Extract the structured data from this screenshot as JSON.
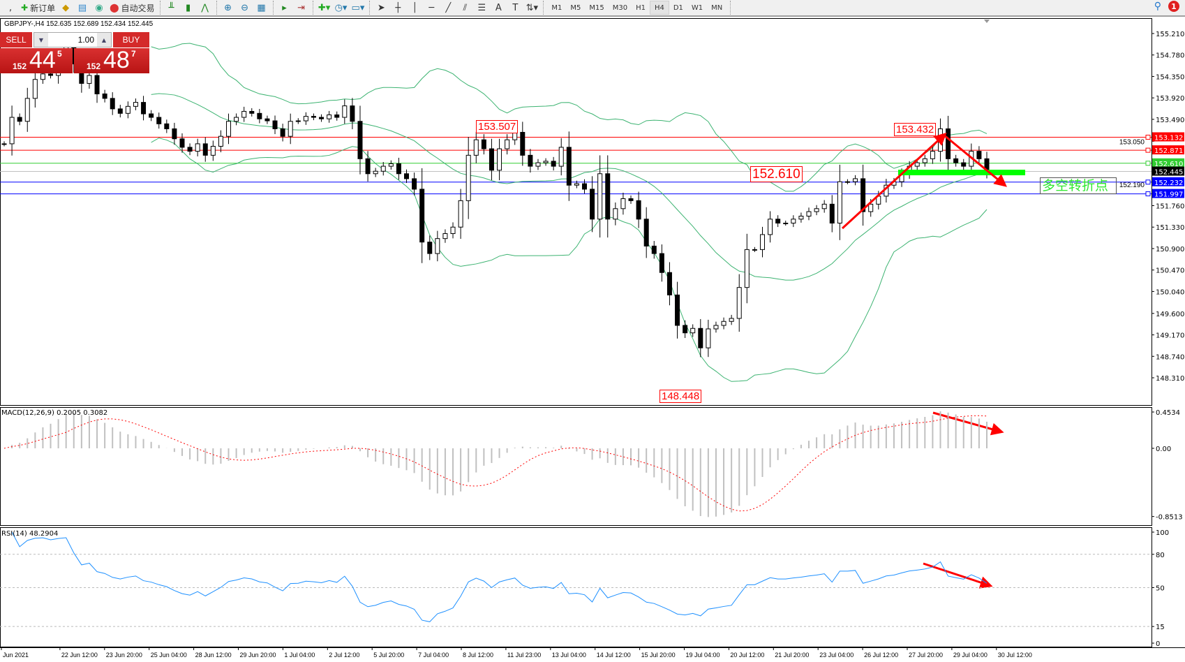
{
  "toolbar": {
    "new_order": "新订单",
    "auto_trading": "自动交易",
    "timeframes": [
      "M1",
      "M5",
      "M15",
      "M30",
      "H1",
      "H4",
      "D1",
      "W1",
      "MN"
    ],
    "active_timeframe": "H4",
    "notification_count": "1",
    "icons": [
      "new-order-icon",
      "market-watch-icon",
      "navigator-icon",
      "signals-icon",
      "auto-trading-icon",
      "bar-chart-icon",
      "candlestick-icon",
      "line-chart-icon",
      "zoom-in-icon",
      "zoom-out-icon",
      "tile-windows-icon",
      "autoscroll-icon",
      "chart-shift-icon",
      "indicators-icon",
      "periods-icon",
      "templates-icon",
      "cursor-icon",
      "crosshair-icon",
      "vertical-line-icon",
      "horizontal-line-icon",
      "trendline-icon",
      "fibonacci-icon",
      "fibo-fan-icon",
      "text-icon",
      "text-label-icon",
      "arrows-icon",
      "search-icon",
      "notification-icon"
    ]
  },
  "chart_info": "GBPJPY-,H4  152.635 152.689 152.434 152.445",
  "one_click": {
    "sell": "SELL",
    "buy": "BUY",
    "lot": "1.00",
    "bid": {
      "big": "152",
      "mid": "44",
      "sup": "5"
    },
    "ask": {
      "big": "152",
      "mid": "48",
      "sup": "7"
    }
  },
  "annotations": {
    "high1": "153.507",
    "level": "152.610",
    "high2": "153.432",
    "low": "148.448",
    "pivot_text": "多空转折点"
  },
  "colors": {
    "bull": "#ffffff",
    "bear": "#000000",
    "bands": "#3cb371",
    "macd_hist": "#c0c0c0",
    "macd_signal": "#ff0000",
    "rsi": "#1e90ff",
    "arrow": "#ff0000",
    "pivot_bar": "#00ff00"
  },
  "chart_data": [
    {
      "type": "candlestick",
      "symbol": "GBPJPY-",
      "timeframe": "H4",
      "ylim": [
        147.79,
        155.46
      ],
      "y_ticks": [
        "155.210",
        "154.780",
        "154.350",
        "153.920",
        "153.490",
        "153.050",
        "152.190",
        "151.760",
        "151.330",
        "150.900",
        "150.470",
        "150.040",
        "149.600",
        "149.170",
        "148.740",
        "148.310"
      ],
      "x_ticks": [
        "Jun 2021",
        "22 Jun 12:00",
        "23 Jun 20:00",
        "25 Jun 04:00",
        "28 Jun 12:00",
        "29 Jun 20:00",
        "1 Jul 04:00",
        "2 Jul 12:00",
        "5 Jul 20:00",
        "7 Jul 04:00",
        "8 Jul 12:00",
        "11 Jul 23:00",
        "13 Jul 04:00",
        "14 Jul 12:00",
        "15 Jul 20:00",
        "19 Jul 04:00",
        "20 Jul 12:00",
        "21 Jul 20:00",
        "23 Jul 04:00",
        "26 Jul 12:00",
        "27 Jul 20:00",
        "29 Jul 04:00",
        "30 Jul 12:00"
      ],
      "close": [
        153.0,
        153.53,
        153.45,
        153.91,
        154.29,
        154.4,
        154.37,
        154.7,
        154.97,
        154.6,
        154.21,
        154.37,
        154.0,
        153.91,
        153.7,
        153.61,
        153.75,
        153.83,
        153.6,
        153.53,
        153.4,
        153.3,
        153.1,
        152.93,
        152.85,
        153.0,
        152.77,
        152.95,
        153.15,
        153.45,
        153.53,
        153.65,
        153.61,
        153.5,
        153.46,
        153.3,
        153.15,
        153.45,
        153.46,
        153.55,
        153.53,
        153.5,
        153.58,
        153.53,
        153.76,
        153.45,
        152.7,
        152.4,
        152.45,
        152.55,
        152.6,
        152.4,
        152.3,
        152.09,
        151.03,
        150.8,
        151.1,
        151.2,
        151.33,
        151.86,
        152.77,
        153.08,
        152.9,
        152.47,
        152.9,
        153.08,
        153.23,
        152.77,
        152.55,
        152.62,
        152.65,
        152.55,
        152.93,
        152.17,
        152.2,
        152.09,
        151.49,
        152.4,
        151.49,
        151.7,
        151.9,
        151.86,
        151.49,
        150.95,
        150.8,
        150.42,
        149.97,
        149.36,
        149.21,
        149.3,
        148.91,
        149.29,
        149.36,
        149.44,
        149.5,
        150.12,
        150.88,
        150.88,
        151.18,
        151.49,
        151.41,
        151.41,
        151.49,
        151.55,
        151.64,
        151.7,
        151.79,
        151.41,
        152.24,
        152.24,
        152.3,
        151.64,
        151.79,
        151.95,
        152.17,
        152.24,
        152.4,
        152.55,
        152.62,
        152.7,
        152.85,
        153.3,
        152.7,
        152.62,
        152.55,
        152.85,
        152.7,
        152.445
      ],
      "indicators": [
        "Bollinger Bands"
      ],
      "hlines": [
        {
          "price": "153.132",
          "color": "#ff0000"
        },
        {
          "price": "152.871",
          "color": "#ff0000"
        },
        {
          "price": "152.610",
          "color": "#32cd32"
        },
        {
          "price": "152.445",
          "color": "#000000",
          "line": "#c0c0c0"
        },
        {
          "price": "152.232",
          "color": "#0000ff"
        },
        {
          "price": "151.997",
          "color": "#0000ff"
        }
      ]
    },
    {
      "type": "bar+line",
      "label": "MACD(12,26,9) 0.2005 0.3082",
      "ylim": [
        -0.8513,
        0.4534
      ],
      "y_ticks": [
        "0.4534",
        "0.00",
        "-0.8513"
      ]
    },
    {
      "type": "line",
      "label": "RSI(14) 48.2904",
      "ylim": [
        0,
        100
      ],
      "y_ticks": [
        "100",
        "80",
        "50",
        "15",
        "0"
      ],
      "levels": [
        80,
        50,
        15
      ]
    }
  ]
}
